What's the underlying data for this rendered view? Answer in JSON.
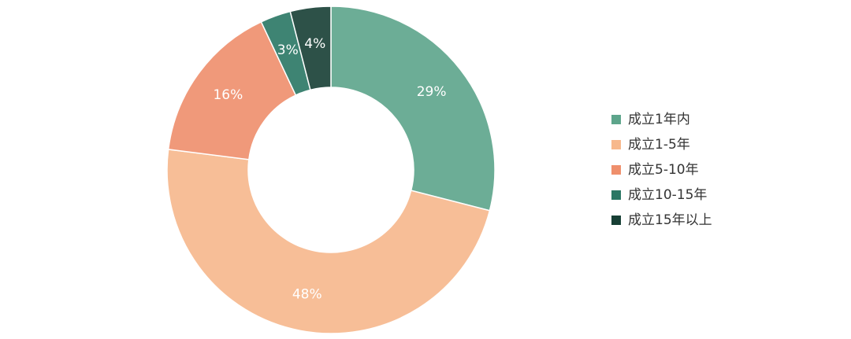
{
  "chart_data": {
    "type": "donut",
    "categories": [
      "成立1年内",
      "成立1-5年",
      "成立5-10年",
      "成立10-15年",
      "成立15年以上"
    ],
    "values": [
      29,
      48,
      16,
      3,
      4
    ],
    "value_labels": [
      "29%",
      "48%",
      "16%",
      "3%",
      "4%"
    ],
    "colors": [
      "#5da58b",
      "#f7b88c",
      "#ef8f6c",
      "#2a7764",
      "#173f35"
    ],
    "legend": "right"
  }
}
